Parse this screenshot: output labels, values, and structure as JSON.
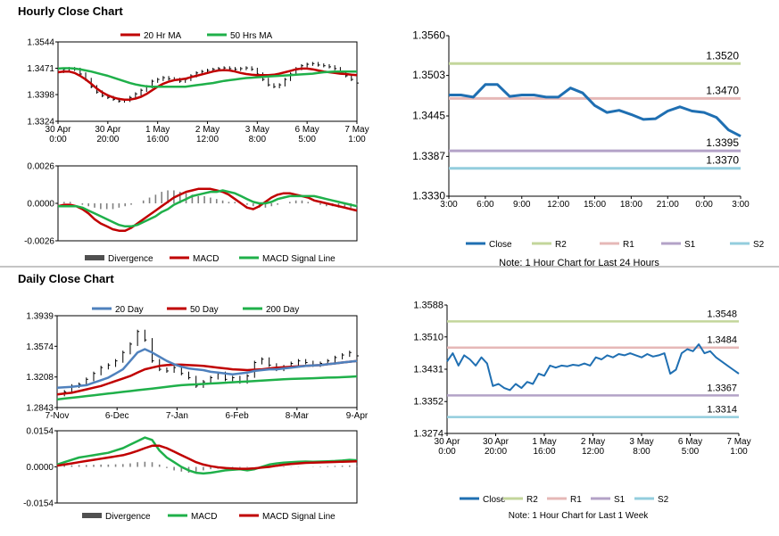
{
  "sections": {
    "hourly": {
      "title": "Hourly Close Chart"
    },
    "daily": {
      "title": "Daily Close Chart"
    }
  },
  "colors": {
    "close": "#1f6fb2",
    "ma_red": "#c00000",
    "ma_green": "#1fb04a",
    "ma_blue": "#4f81bd",
    "r2": "#c3d69b",
    "r1": "#e6b8b7",
    "s1": "#b3a2c7",
    "s2": "#93cddd",
    "divergence": "#808080",
    "divider": "#888888",
    "frame": "#000000"
  },
  "chart_data": [
    {
      "id": "hourly_price_ma",
      "type": "line",
      "legend": [
        "20 Hr MA",
        "50 Hrs MA"
      ],
      "y_ticks": [
        "1.3544",
        "1.3471",
        "1.3398",
        "1.3324"
      ],
      "ylim": [
        1.3324,
        1.3544
      ],
      "x_ticks": [
        [
          "30 Apr",
          "0:00"
        ],
        [
          "30 Apr",
          "20:00"
        ],
        [
          "1 May",
          "16:00"
        ],
        [
          "2 May",
          "12:00"
        ],
        [
          "3 May",
          "8:00"
        ],
        [
          "6 May",
          "5:00"
        ],
        [
          "7 May",
          "1:00"
        ]
      ],
      "series": [
        {
          "name": "Close",
          "style": "ohlc",
          "values": [
            1.3462,
            1.3468,
            1.347,
            1.3468,
            1.3455,
            1.344,
            1.342,
            1.3405,
            1.3395,
            1.339,
            1.3385,
            1.338,
            1.3382,
            1.339,
            1.34,
            1.341,
            1.342,
            1.3435,
            1.344,
            1.3445,
            1.3442,
            1.344,
            1.3435,
            1.344,
            1.345,
            1.3458,
            1.3462,
            1.3465,
            1.3468,
            1.347,
            1.3472,
            1.347,
            1.3468,
            1.347,
            1.3472,
            1.3468,
            1.3455,
            1.344,
            1.3425,
            1.342,
            1.3425,
            1.344,
            1.3455,
            1.347,
            1.3478,
            1.3482,
            1.3484,
            1.348,
            1.3478,
            1.3475,
            1.347,
            1.346,
            1.345,
            1.344,
            1.343
          ]
        },
        {
          "name": "20 Hr MA",
          "values": [
            1.346,
            1.3462,
            1.3462,
            1.3458,
            1.345,
            1.344,
            1.3428,
            1.3415,
            1.3404,
            1.3396,
            1.339,
            1.3386,
            1.3384,
            1.3384,
            1.3387,
            1.3392,
            1.34,
            1.341,
            1.342,
            1.3428,
            1.3434,
            1.3438,
            1.344,
            1.3442,
            1.3446,
            1.345,
            1.3454,
            1.3458,
            1.3462,
            1.3465,
            1.3466,
            1.3465,
            1.3462,
            1.3458,
            1.3455,
            1.3453,
            1.3452,
            1.3452,
            1.3452,
            1.3453,
            1.3456,
            1.346,
            1.3464,
            1.3468,
            1.347,
            1.347,
            1.3468,
            1.3465,
            1.3462,
            1.346,
            1.3458,
            1.3456,
            1.3455,
            1.3453,
            1.3452
          ]
        },
        {
          "name": "50 Hrs MA",
          "values": [
            1.347,
            1.3471,
            1.3471,
            1.347,
            1.3468,
            1.3465,
            1.3462,
            1.3458,
            1.3454,
            1.345,
            1.3445,
            1.344,
            1.3435,
            1.343,
            1.3426,
            1.3423,
            1.3421,
            1.342,
            1.342,
            1.342,
            1.342,
            1.342,
            1.342,
            1.342,
            1.3422,
            1.3424,
            1.3426,
            1.3428,
            1.343,
            1.3433,
            1.3436,
            1.3438,
            1.344,
            1.3442,
            1.3444,
            1.3445,
            1.3446,
            1.3447,
            1.3448,
            1.3449,
            1.345,
            1.3451,
            1.3452,
            1.3453,
            1.3454,
            1.3455,
            1.3456,
            1.3458,
            1.346,
            1.3461,
            1.3462,
            1.3462,
            1.3462,
            1.3462,
            1.3462
          ]
        }
      ]
    },
    {
      "id": "hourly_macd",
      "type": "line",
      "legend": [
        "Divergence",
        "MACD",
        "MACD Signal Line"
      ],
      "y_ticks": [
        "0.0026",
        "0.0000",
        "-0.0026"
      ],
      "ylim": [
        -0.0026,
        0.0026
      ],
      "series": [
        {
          "name": "Divergence",
          "style": "bar",
          "values": [
            0.0,
            0.0001,
            0.0001,
            0.0,
            -0.0001,
            -0.0002,
            -0.0003,
            -0.0004,
            -0.0004,
            -0.0004,
            -0.0003,
            -0.0002,
            -0.0001,
            0.0,
            0.0002,
            0.0004,
            0.0006,
            0.0008,
            0.0009,
            0.0009,
            0.0008,
            0.0007,
            0.0006,
            0.0005,
            0.0005,
            0.0004,
            0.0003,
            0.0002,
            0.0001,
            0.0001,
            0.0,
            -0.0001,
            -0.0002,
            -0.0003,
            -0.0003,
            -0.0002,
            -0.0001,
            0.0,
            0.0001,
            0.0002,
            0.0002,
            0.0001,
            0.0,
            -0.0001,
            -0.0002,
            -0.0002,
            -0.0003,
            -0.0003,
            -0.0003,
            -0.0002
          ]
        },
        {
          "name": "MACD",
          "values": [
            -0.0002,
            -0.0001,
            -0.0001,
            -0.0002,
            -0.0004,
            -0.0007,
            -0.0011,
            -0.0014,
            -0.0016,
            -0.0018,
            -0.0019,
            -0.0019,
            -0.0017,
            -0.0014,
            -0.0011,
            -0.0008,
            -0.0005,
            -0.0002,
            0.0001,
            0.0004,
            0.0006,
            0.0008,
            0.0009,
            0.001,
            0.001,
            0.001,
            0.0009,
            0.0008,
            0.0006,
            0.0003,
            0.0,
            -0.0003,
            -0.0004,
            -0.0002,
            0.0001,
            0.0004,
            0.0006,
            0.0007,
            0.0007,
            0.0006,
            0.0005,
            0.0004,
            0.0002,
            0.0001,
            0.0,
            -0.0001,
            -0.0002,
            -0.0003,
            -0.0004,
            -0.0005
          ]
        },
        {
          "name": "MACD Signal Line",
          "values": [
            -0.0002,
            -0.0002,
            -0.0002,
            -0.0002,
            -0.0003,
            -0.0005,
            -0.0007,
            -0.0009,
            -0.0011,
            -0.0013,
            -0.0015,
            -0.0016,
            -0.0016,
            -0.0015,
            -0.0013,
            -0.0011,
            -0.0009,
            -0.0006,
            -0.0004,
            -0.0001,
            0.0001,
            0.0003,
            0.0005,
            0.0006,
            0.0007,
            0.0008,
            0.0008,
            0.0009,
            0.0008,
            0.0007,
            0.0005,
            0.0003,
            0.0001,
            0.0,
            0.0,
            0.0001,
            0.0003,
            0.0004,
            0.0005,
            0.0005,
            0.0005,
            0.0005,
            0.0005,
            0.0004,
            0.0003,
            0.0002,
            0.0001,
            0.0,
            -0.0001,
            -0.0002
          ]
        }
      ]
    },
    {
      "id": "hourly_pivot",
      "type": "line",
      "legend": [
        "Close",
        "R2",
        "R1",
        "S1",
        "S2"
      ],
      "note": "Note: 1 Hour Chart for Last 24 Hours",
      "y_ticks": [
        "1.3560",
        "1.3503",
        "1.3445",
        "1.3387",
        "1.3330"
      ],
      "ylim": [
        1.333,
        1.356
      ],
      "x_ticks": [
        "3:00",
        "6:00",
        "9:00",
        "12:00",
        "15:00",
        "18:00",
        "21:00",
        "0:00",
        "3:00"
      ],
      "levels": {
        "R2": 1.352,
        "R1": 1.347,
        "S1": 1.3395,
        "S2": 1.337
      },
      "level_labels": {
        "R2": "1.3520",
        "R1": "1.3470",
        "S1": "1.3395",
        "S2": "1.3370"
      },
      "series": [
        {
          "name": "Close",
          "values": [
            1.3475,
            1.3475,
            1.3472,
            1.349,
            1.349,
            1.3473,
            1.3475,
            1.3475,
            1.3472,
            1.3472,
            1.3485,
            1.3478,
            1.346,
            1.345,
            1.3453,
            1.3447,
            1.344,
            1.3441,
            1.3452,
            1.3458,
            1.3452,
            1.345,
            1.3443,
            1.3425,
            1.3416
          ]
        }
      ]
    },
    {
      "id": "daily_price_ma",
      "type": "line",
      "legend": [
        "20 Day",
        "50 Day",
        "200 Day"
      ],
      "y_ticks": [
        "1.3939",
        "1.3574",
        "1.3208",
        "1.2843"
      ],
      "ylim": [
        1.2843,
        1.3939
      ],
      "x_ticks": [
        "7-Nov",
        "6-Dec",
        "7-Jan",
        "6-Feb",
        "8-Mar",
        "9-Apr"
      ],
      "series": [
        {
          "name": "Close",
          "style": "ohlc",
          "values": [
            1.3,
            1.303,
            1.31,
            1.312,
            1.318,
            1.325,
            1.332,
            1.335,
            1.34,
            1.35,
            1.36,
            1.375,
            1.365,
            1.34,
            1.33,
            1.328,
            1.332,
            1.325,
            1.32,
            1.31,
            1.315,
            1.32,
            1.325,
            1.318,
            1.32,
            1.315,
            1.322,
            1.338,
            1.342,
            1.335,
            1.33,
            1.333,
            1.337,
            1.34,
            1.338,
            1.335,
            1.337,
            1.34,
            1.344,
            1.347,
            1.35,
            1.346
          ]
        },
        {
          "name": "20 Day",
          "values": [
            1.308,
            1.3085,
            1.309,
            1.31,
            1.311,
            1.314,
            1.317,
            1.32,
            1.325,
            1.33,
            1.34,
            1.35,
            1.354,
            1.35,
            1.345,
            1.34,
            1.336,
            1.333,
            1.331,
            1.33,
            1.329,
            1.327,
            1.326,
            1.325,
            1.324,
            1.325,
            1.326,
            1.328,
            1.329,
            1.33,
            1.33,
            1.331,
            1.332,
            1.333,
            1.334,
            1.3345,
            1.335,
            1.336,
            1.337,
            1.338,
            1.339,
            1.34
          ]
        },
        {
          "name": "50 Day",
          "values": [
            1.3,
            1.301,
            1.302,
            1.304,
            1.306,
            1.308,
            1.31,
            1.313,
            1.316,
            1.319,
            1.322,
            1.326,
            1.33,
            1.332,
            1.334,
            1.335,
            1.3355,
            1.3355,
            1.335,
            1.3345,
            1.334,
            1.333,
            1.332,
            1.331,
            1.33,
            1.3295,
            1.329,
            1.3295,
            1.33,
            1.331,
            1.332,
            1.3325,
            1.333,
            1.3335,
            1.334,
            1.3345,
            1.335,
            1.336,
            1.337,
            1.338,
            1.339,
            1.34
          ]
        },
        {
          "name": "200 Day",
          "values": [
            1.294,
            1.295,
            1.296,
            1.297,
            1.298,
            1.299,
            1.3,
            1.301,
            1.302,
            1.303,
            1.304,
            1.305,
            1.306,
            1.307,
            1.308,
            1.309,
            1.31,
            1.311,
            1.3115,
            1.312,
            1.3125,
            1.313,
            1.3135,
            1.314,
            1.3145,
            1.315,
            1.3155,
            1.316,
            1.3165,
            1.317,
            1.3175,
            1.318,
            1.3185,
            1.3188,
            1.319,
            1.3193,
            1.3196,
            1.32,
            1.3203,
            1.3206,
            1.321,
            1.3215
          ]
        }
      ]
    },
    {
      "id": "daily_macd",
      "type": "line",
      "legend": [
        "Divergence",
        "MACD",
        "MACD Signal Line"
      ],
      "y_ticks": [
        "0.0154",
        "0.0000",
        "-0.0154"
      ],
      "ylim": [
        -0.0154,
        0.0154
      ],
      "series": [
        {
          "name": "Divergence",
          "style": "bar",
          "values": [
            0.0005,
            0.0006,
            0.0007,
            0.0008,
            0.0008,
            0.0009,
            0.001,
            0.001,
            0.0011,
            0.0012,
            0.0015,
            0.002,
            0.0022,
            0.002,
            0.001,
            -0.0005,
            -0.0015,
            -0.002,
            -0.0025,
            -0.0022,
            -0.0015,
            -0.001,
            -0.0008,
            -0.0005,
            -0.0004,
            -0.0003,
            -0.0002,
            0.0,
            0.0003,
            0.0005,
            0.0004,
            0.0002,
            0.0001,
            0.0001,
            0.0,
            0.0001,
            0.0002,
            0.0003,
            0.0004,
            0.0005,
            0.0006,
            0.0005
          ]
        },
        {
          "name": "MACD",
          "values": [
            0.001,
            0.002,
            0.003,
            0.004,
            0.0045,
            0.005,
            0.0055,
            0.006,
            0.007,
            0.008,
            0.0095,
            0.011,
            0.0125,
            0.0115,
            0.007,
            0.004,
            0.002,
            0.0,
            -0.0015,
            -0.0025,
            -0.0028,
            -0.0025,
            -0.002,
            -0.0015,
            -0.0012,
            -0.001,
            -0.0015,
            -0.001,
            0.0,
            0.001,
            0.0015,
            0.0018,
            0.002,
            0.0022,
            0.0023,
            0.0022,
            0.0023,
            0.0024,
            0.0025,
            0.0027,
            0.003,
            0.0028
          ]
        },
        {
          "name": "MACD Signal Line",
          "values": [
            0.0005,
            0.001,
            0.0015,
            0.002,
            0.0025,
            0.003,
            0.0035,
            0.004,
            0.0045,
            0.005,
            0.0058,
            0.0068,
            0.008,
            0.009,
            0.009,
            0.008,
            0.0065,
            0.005,
            0.0035,
            0.002,
            0.001,
            0.0003,
            -0.0002,
            -0.0005,
            -0.0007,
            -0.0008,
            -0.0008,
            -0.0006,
            -0.0003,
            0.0,
            0.0005,
            0.0009,
            0.0012,
            0.0015,
            0.0017,
            0.0018,
            0.0019,
            0.002,
            0.0021,
            0.0022,
            0.0023,
            0.0024
          ]
        }
      ]
    },
    {
      "id": "weekly_pivot",
      "type": "line",
      "legend": [
        "Close",
        "R2",
        "R1",
        "S1",
        "S2"
      ],
      "note": "Note: 1 Hour Chart for Last 1 Week",
      "y_ticks": [
        "1.3588",
        "1.3510",
        "1.3431",
        "1.3352",
        "1.3274"
      ],
      "ylim": [
        1.3274,
        1.3588
      ],
      "x_ticks": [
        [
          "30 Apr",
          "0:00"
        ],
        [
          "30 Apr",
          "20:00"
        ],
        [
          "1 May",
          "16:00"
        ],
        [
          "2 May",
          "12:00"
        ],
        [
          "3 May",
          "8:00"
        ],
        [
          "6 May",
          "5:00"
        ],
        [
          "7 May",
          "1:00"
        ]
      ],
      "levels": {
        "R2": 1.3548,
        "R1": 1.3484,
        "S1": 1.3367,
        "S2": 1.3314
      },
      "level_labels": {
        "R2": "1.3548",
        "R1": "1.3484",
        "S1": "1.3367",
        "S2": "1.3314"
      },
      "series": [
        {
          "name": "Close",
          "values": [
            1.345,
            1.347,
            1.344,
            1.3465,
            1.3455,
            1.344,
            1.346,
            1.3445,
            1.339,
            1.3395,
            1.3385,
            1.338,
            1.3395,
            1.3385,
            1.34,
            1.3395,
            1.342,
            1.3415,
            1.344,
            1.3435,
            1.344,
            1.3438,
            1.3442,
            1.344,
            1.3445,
            1.344,
            1.346,
            1.3455,
            1.3465,
            1.346,
            1.3468,
            1.3465,
            1.347,
            1.3465,
            1.346,
            1.3468,
            1.3462,
            1.3465,
            1.347,
            1.342,
            1.343,
            1.347,
            1.348,
            1.3475,
            1.3492,
            1.347,
            1.3475,
            1.346,
            1.345,
            1.344,
            1.343,
            1.342
          ]
        }
      ]
    }
  ]
}
